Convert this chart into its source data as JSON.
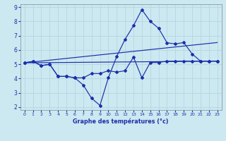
{
  "xlabel": "Graphe des températures (°c)",
  "xlim": [
    -0.5,
    23.5
  ],
  "ylim": [
    1.8,
    9.2
  ],
  "xticks": [
    0,
    1,
    2,
    3,
    4,
    5,
    6,
    7,
    8,
    9,
    10,
    11,
    12,
    13,
    14,
    15,
    16,
    17,
    18,
    19,
    20,
    21,
    22,
    23
  ],
  "yticks": [
    2,
    3,
    4,
    5,
    6,
    7,
    8,
    9
  ],
  "bg_color": "#cce8f0",
  "line_color": "#1a2faa",
  "grid_color": "#b0d4de",
  "curve1_x": [
    0,
    1,
    2,
    3,
    4,
    5,
    6,
    7,
    8,
    9,
    10,
    11,
    12,
    13,
    14,
    15,
    16,
    17,
    18,
    19,
    20,
    21,
    22,
    23
  ],
  "curve1_y": [
    5.1,
    5.2,
    4.9,
    5.0,
    4.15,
    4.15,
    4.05,
    3.55,
    2.62,
    2.12,
    4.05,
    5.55,
    6.75,
    7.7,
    8.82,
    8.0,
    7.52,
    6.5,
    6.42,
    6.52,
    5.72,
    5.22,
    5.22,
    5.22
  ],
  "curve2_x": [
    0,
    1,
    2,
    3,
    4,
    5,
    6,
    7,
    8,
    9,
    10,
    11,
    12,
    13,
    14,
    15,
    16,
    17,
    18,
    19,
    20,
    21,
    22,
    23
  ],
  "curve2_y": [
    5.1,
    5.2,
    4.9,
    5.0,
    4.15,
    4.15,
    4.05,
    4.05,
    4.35,
    4.35,
    4.55,
    4.45,
    4.55,
    5.5,
    4.05,
    5.12,
    5.12,
    5.22,
    5.22,
    5.22,
    5.22,
    5.22,
    5.22,
    5.22
  ],
  "line1_x": [
    0,
    23
  ],
  "line1_y": [
    5.1,
    5.22
  ],
  "line2_x": [
    0,
    23
  ],
  "line2_y": [
    5.1,
    6.52
  ]
}
